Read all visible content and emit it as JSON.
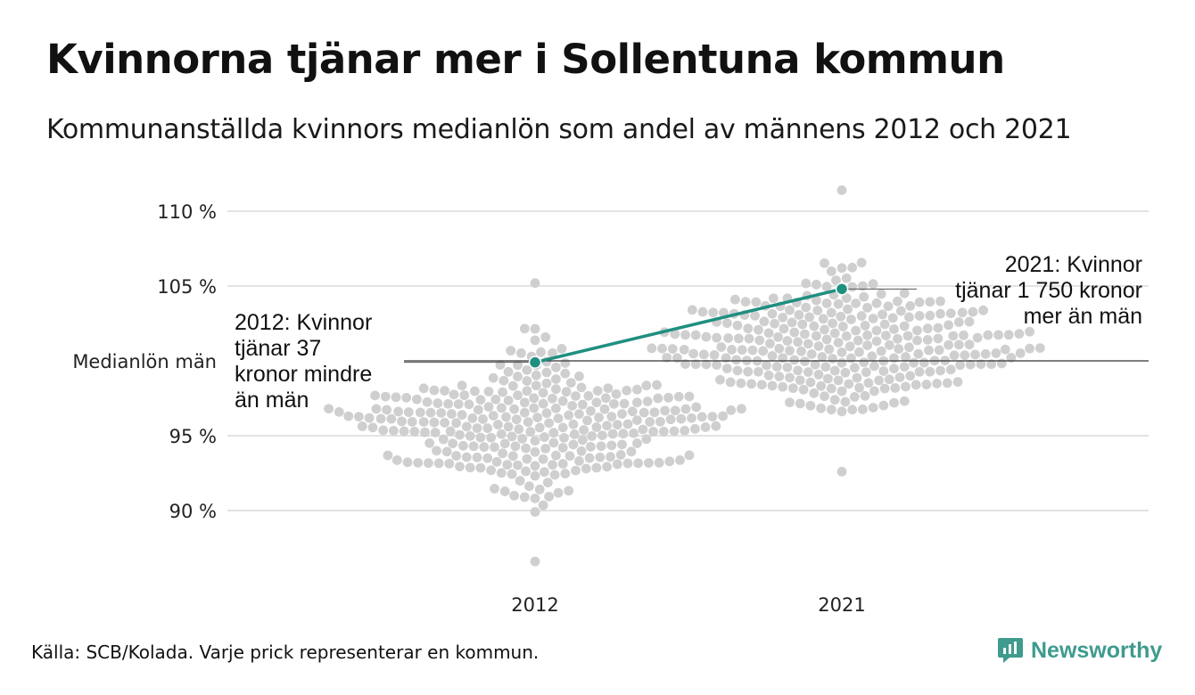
{
  "title": "Kvinnorna tjänar mer i Sollentuna kommun",
  "subtitle": "Kommunanställda kvinnors medianlön som andel av männens 2012 och 2021",
  "source": "Källa: SCB/Kolada. Varje prick representerar en kommun.",
  "brand": {
    "name": "Newsworthy",
    "icon": "newsworthy-logo-icon",
    "color": "#3e9b8e"
  },
  "chart_data": {
    "type": "scatter",
    "subtype": "beeswarm",
    "categories": [
      "2012",
      "2021"
    ],
    "ylim": [
      86,
      111.5
    ],
    "y_ticks": [
      {
        "value": 90,
        "label": "90 %"
      },
      {
        "value": 95,
        "label": "95 %"
      },
      {
        "value": 100,
        "label": "Medianlön män"
      },
      {
        "value": 105,
        "label": "105 %"
      },
      {
        "value": 110,
        "label": "110 %"
      }
    ],
    "grid": true,
    "reference_line": {
      "value": 100,
      "label": "Medianlön män"
    },
    "colors": {
      "dots": "#cfcfcf",
      "highlight": "#1f8f80",
      "grid": "#e3e3e3",
      "reference": "#333333"
    },
    "distributions": [
      {
        "category": "2012",
        "count": 290,
        "min": 86.6,
        "max": 105.2,
        "center": 95.8,
        "spread": 2.3
      },
      {
        "category": "2021",
        "count": 290,
        "min": 92.6,
        "max": 111.4,
        "center": 100.9,
        "spread": 2.2
      }
    ],
    "highlight": {
      "name": "Sollentuna",
      "points": [
        {
          "x": "2012",
          "y": 99.9
        },
        {
          "x": "2021",
          "y": 104.8
        }
      ]
    },
    "annotations": [
      {
        "x": "2012",
        "text_lines": [
          "2012: Kvinnor",
          "tjänar 37",
          "kronor mindre",
          "än män"
        ]
      },
      {
        "x": "2021",
        "text_lines": [
          "2021: Kvinnor",
          "tjänar 1 750 kronor",
          "mer än män"
        ]
      }
    ]
  }
}
